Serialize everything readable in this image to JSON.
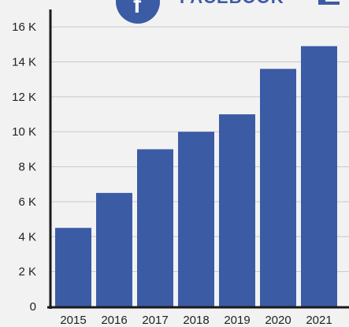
{
  "chart_data": {
    "type": "bar",
    "title": "FACEBOOK",
    "xlabel": "",
    "ylabel": "",
    "categories": [
      "2015",
      "2016",
      "2017",
      "2018",
      "2019",
      "2020",
      "2021"
    ],
    "values": [
      4500,
      6500,
      9000,
      10000,
      11000,
      13600,
      14900
    ],
    "ylim": [
      0,
      17000
    ],
    "yticks": [
      0,
      2000,
      4000,
      6000,
      8000,
      10000,
      12000,
      14000,
      16000
    ],
    "ytick_labels": [
      "0",
      "2 K",
      "4 K",
      "6 K",
      "8 K",
      "10 K",
      "12 K",
      "14 K",
      "16 K"
    ],
    "grid": true,
    "legend": "none",
    "bar_color": "#3b5ba5",
    "grid_color": "#c8c8c8",
    "logo_icon": "facebook-logo-icon"
  }
}
